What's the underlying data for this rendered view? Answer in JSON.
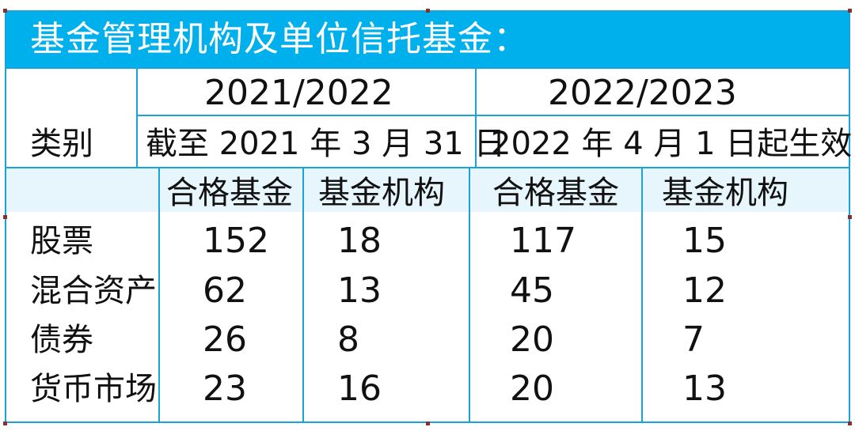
{
  "title": "基金管理机构及单位信托基金：",
  "category_label": "类别",
  "periods": [
    {
      "year": "2021/2022",
      "effective": "截至 2021 年 3 月 31 日"
    },
    {
      "year": "2022/2023",
      "effective": "2022 年 4 月 1 日起生效"
    }
  ],
  "column_headers": [
    "合格基金",
    "基金机构",
    "合格基金",
    "基金机构"
  ],
  "rows": [
    {
      "label": "股票",
      "values": [
        "152",
        "18",
        "117",
        "15"
      ]
    },
    {
      "label": "混合资产",
      "values": [
        "62",
        "13",
        "45",
        "12"
      ]
    },
    {
      "label": "债券",
      "values": [
        "26",
        "8",
        "20",
        "7"
      ]
    },
    {
      "label": "货币市场",
      "values": [
        "23",
        "16",
        "20",
        "13"
      ]
    }
  ],
  "colors": {
    "title_bg": "#00b0ec",
    "border": "#1aa3d9",
    "subheader_bg": "#e7f6fc"
  }
}
